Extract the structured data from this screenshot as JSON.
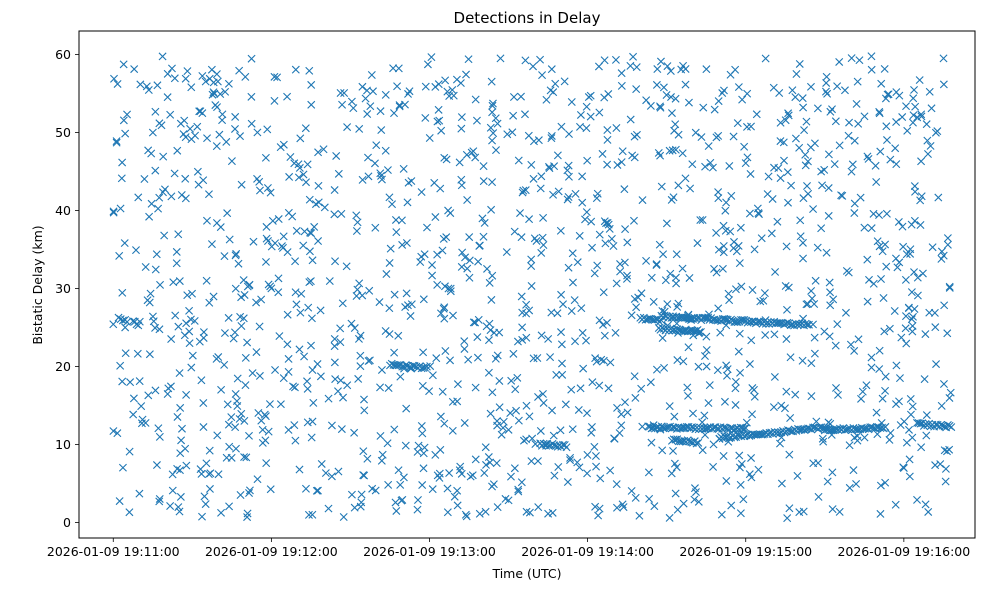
{
  "chart_data": {
    "type": "scatter",
    "title": "Detections in Delay",
    "xlabel": "Time (UTC)",
    "ylabel": "Bistatic Delay (km)",
    "marker": "x",
    "color": "#1f77b4",
    "grid": false,
    "x_ticks": [
      "2026-01-09 19:11:00",
      "2026-01-09 19:12:00",
      "2026-01-09 19:13:00",
      "2026-01-09 19:14:00",
      "2026-01-09 19:15:00",
      "2026-01-09 19:16:00"
    ],
    "xlim": [
      "2026-01-09 19:10:47",
      "2026-01-09 19:16:27"
    ],
    "y_ticks": [
      0,
      10,
      20,
      30,
      40,
      50,
      60
    ],
    "ylim": [
      -2,
      63
    ],
    "tracks": [
      {
        "x": [
          2.0,
          4.5
        ],
        "y": [
          26.1,
          25.9
        ]
      },
      {
        "x": [
          7.5,
          9.5
        ],
        "y": [
          25.8,
          25.4
        ]
      },
      {
        "x": [
          105,
          119
        ],
        "y": [
          20.2,
          19.8
        ]
      },
      {
        "x": [
          162,
          172
        ],
        "y": [
          10.0,
          9.8
        ]
      },
      {
        "x": [
          200,
          208
        ],
        "y": [
          26.2,
          25.8
        ]
      },
      {
        "x": [
          212,
          222
        ],
        "y": [
          10.6,
          10.2
        ]
      },
      {
        "x": [
          203,
          240
        ],
        "y": [
          12.2,
          12.0
        ]
      },
      {
        "x": [
          207,
          223
        ],
        "y": [
          24.8,
          24.5
        ]
      },
      {
        "x": [
          208,
          264
        ],
        "y": [
          26.4,
          25.3
        ]
      },
      {
        "x": [
          230,
          270
        ],
        "y": [
          10.8,
          12.2
        ]
      },
      {
        "x": [
          270,
          293
        ],
        "y": [
          11.8,
          12.2
        ]
      },
      {
        "x": [
          305,
          318
        ],
        "y": [
          12.6,
          12.3
        ]
      }
    ],
    "random_seed": 20260109,
    "random_points": 1500,
    "x_range_seconds": [
      0,
      318
    ],
    "y_range": [
      0.5,
      60
    ]
  }
}
